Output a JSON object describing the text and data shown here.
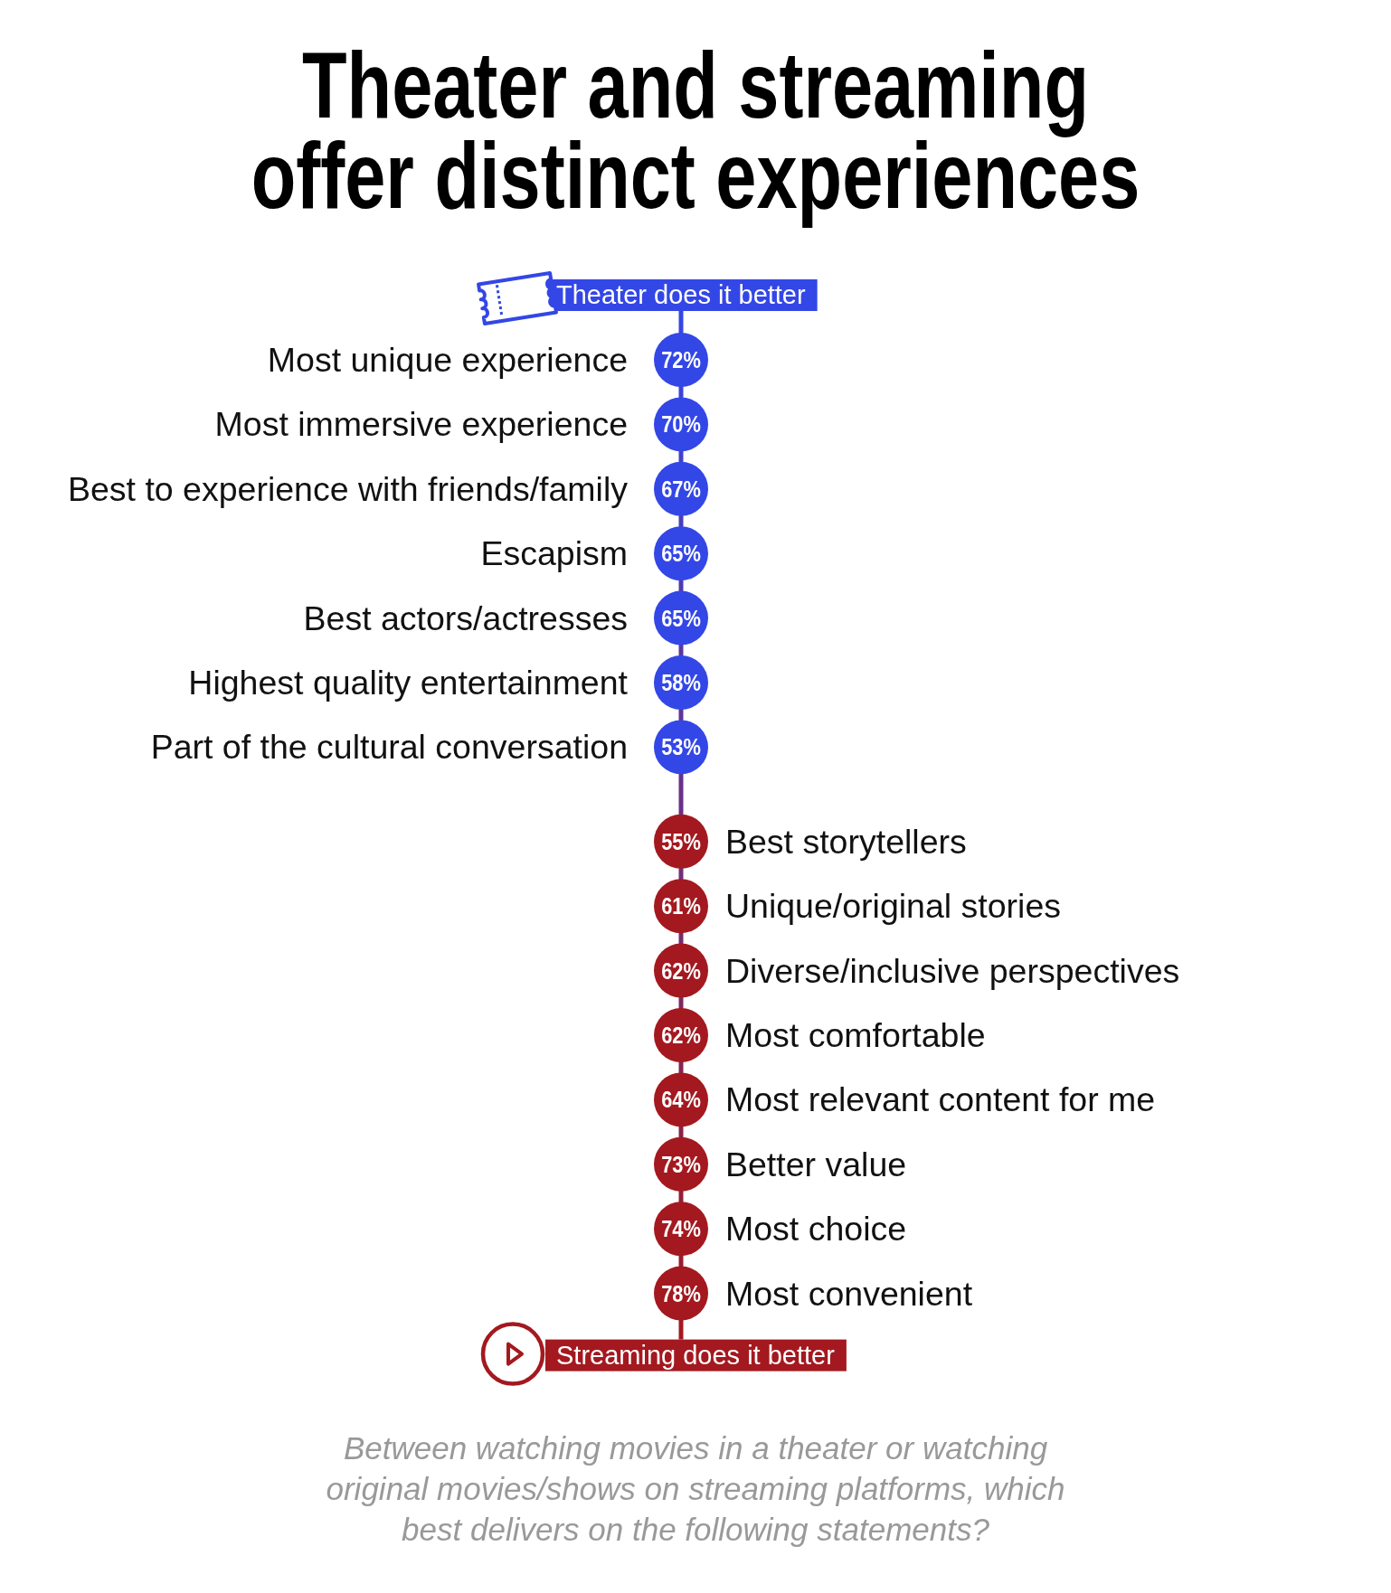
{
  "chart_data": {
    "type": "other",
    "title": "Theater and streaming offer distinct experiences",
    "legend": "bottom left",
    "categories": [
      "Most unique experience",
      "Most immersive experience",
      "Best to experience with friends/family",
      "Escapism",
      "Best actors/actresses",
      "Highest quality entertainment",
      "Part of the cultural conversation",
      "Best storytellers",
      "Unique/original stories",
      "Diverse/inclusive perspectives",
      "Most comfortable",
      "Most relevant content for me",
      "Better value",
      "Most choice",
      "Most convenient"
    ],
    "series": [
      {
        "name": "Theater does it better",
        "color": "#3347e6",
        "values": [
          72,
          70,
          67,
          65,
          65,
          58,
          53,
          null,
          null,
          null,
          null,
          null,
          null,
          null,
          null
        ],
        "value_labels": [
          "72%",
          "70%",
          "67%",
          "65%",
          "65%",
          "58%",
          "53%",
          null,
          null,
          null,
          null,
          null,
          null,
          null,
          null
        ]
      },
      {
        "name": "Streaming does it better",
        "color": "#a3191f",
        "values": [
          null,
          null,
          null,
          null,
          null,
          null,
          null,
          55,
          61,
          62,
          62,
          64,
          73,
          74,
          78
        ],
        "value_labels": [
          null,
          null,
          null,
          null,
          null,
          null,
          null,
          "55%",
          "61%",
          "62%",
          "62%",
          "64%",
          "73%",
          "74%",
          "78%"
        ]
      }
    ],
    "annotations": [
      "Between watching movies in a theater or watching original movies/shows on streaming platforms, which best delivers on the following statements?"
    ]
  }
}
